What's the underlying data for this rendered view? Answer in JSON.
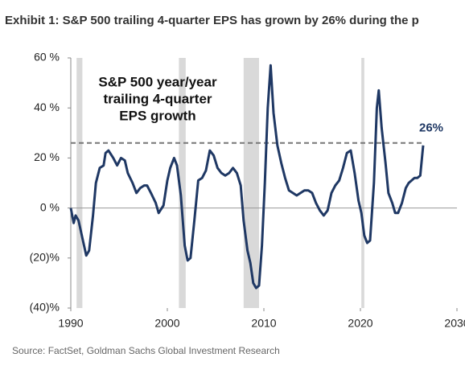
{
  "chart_data": {
    "type": "line",
    "title": "Exhibit 1: S&P 500 trailing 4-quarter EPS has grown by 26% during the p",
    "annotation": [
      "S&P 500 year/year",
      "trailing 4-quarter",
      "EPS growth"
    ],
    "source": "Source: FactSet, Goldman Sachs Global Investment Research",
    "reference_line": {
      "value": 26,
      "label": "26%"
    },
    "recessions": [
      [
        1990.6,
        1991.2
      ],
      [
        2001.2,
        2001.9
      ],
      [
        2007.9,
        2009.5
      ],
      [
        2020.1,
        2020.4
      ]
    ],
    "xlim": [
      1990,
      2030
    ],
    "xticks": [
      1990,
      2000,
      2010,
      2020,
      2030
    ],
    "ylim": [
      -40,
      60
    ],
    "yticks": [
      {
        "value": -40,
        "label": "(40)%"
      },
      {
        "value": -20,
        "label": "(20)%"
      },
      {
        "value": 0,
        "label": "0 %"
      },
      {
        "value": 20,
        "label": "20 %"
      },
      {
        "value": 40,
        "label": "40 %"
      },
      {
        "value": 60,
        "label": "60 %"
      }
    ],
    "series": [
      {
        "name": "S&P 500 EPS growth",
        "color": "#1f3864",
        "x": [
          1990.0,
          1990.3,
          1990.5,
          1990.8,
          1991.2,
          1991.6,
          1991.9,
          1992.3,
          1992.6,
          1993.0,
          1993.4,
          1993.6,
          1993.9,
          1994.4,
          1994.8,
          1995.2,
          1995.6,
          1995.9,
          1996.4,
          1996.8,
          1997.2,
          1997.6,
          1997.9,
          1998.3,
          1998.8,
          1999.1,
          1999.6,
          2000.0,
          2000.3,
          2000.7,
          2001.0,
          2001.4,
          2001.8,
          2002.1,
          2002.4,
          2002.8,
          2003.2,
          2003.6,
          2004.0,
          2004.4,
          2004.8,
          2005.2,
          2005.6,
          2006.0,
          2006.4,
          2006.8,
          2007.2,
          2007.6,
          2007.9,
          2008.3,
          2008.6,
          2008.9,
          2009.2,
          2009.5,
          2009.8,
          2010.1,
          2010.4,
          2010.7,
          2011.0,
          2011.4,
          2011.8,
          2012.2,
          2012.6,
          2013.0,
          2013.4,
          2013.8,
          2014.2,
          2014.6,
          2015.0,
          2015.4,
          2015.8,
          2016.2,
          2016.6,
          2017.0,
          2017.4,
          2017.8,
          2018.2,
          2018.6,
          2019.0,
          2019.4,
          2019.8,
          2020.1,
          2020.4,
          2020.7,
          2021.0,
          2021.4,
          2021.7,
          2021.9,
          2022.2,
          2022.6,
          2022.9,
          2023.3,
          2023.6,
          2023.9,
          2024.3,
          2024.7,
          2025.0,
          2025.3,
          2025.6,
          2025.9,
          2026.2,
          2026.5
        ],
        "values": [
          0,
          -6,
          -3,
          -5,
          -12,
          -19,
          -17,
          -3,
          10,
          16,
          17,
          22,
          23,
          20,
          17,
          20,
          19,
          14,
          10,
          6,
          8,
          9,
          9,
          6,
          2,
          -2,
          1,
          11,
          16,
          20,
          17,
          5,
          -15,
          -21,
          -20,
          -5,
          11,
          12,
          15,
          23,
          21,
          16,
          14,
          13,
          14,
          16,
          14,
          9,
          -5,
          -17,
          -22,
          -30,
          -32,
          -31,
          -15,
          10,
          40,
          57,
          38,
          25,
          18,
          12,
          7,
          6,
          5,
          6,
          7,
          7,
          6,
          2,
          -1,
          -3,
          -1,
          6,
          9,
          11,
          16,
          22,
          23,
          14,
          3,
          -2,
          -11,
          -14,
          -13,
          10,
          40,
          47,
          32,
          18,
          6,
          2,
          -2,
          -2,
          2,
          8,
          10,
          11,
          12,
          12,
          13,
          25
        ]
      }
    ]
  }
}
